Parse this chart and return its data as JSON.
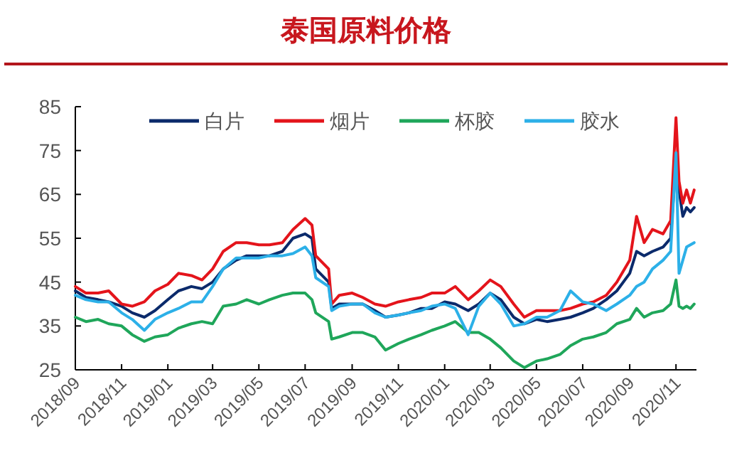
{
  "chart_data": {
    "type": "line",
    "title": "泰国原料价格",
    "x": [
      "2018-09-01",
      "2018-09-15",
      "2018-10-01",
      "2018-10-15",
      "2018-11-01",
      "2018-11-15",
      "2018-12-01",
      "2018-12-15",
      "2019-01-01",
      "2019-01-15",
      "2019-02-01",
      "2019-02-15",
      "2019-03-01",
      "2019-03-15",
      "2019-04-01",
      "2019-04-15",
      "2019-05-01",
      "2019-05-15",
      "2019-06-01",
      "2019-06-15",
      "2019-07-01",
      "2019-07-10",
      "2019-07-15",
      "2019-08-01",
      "2019-08-05",
      "2019-08-15",
      "2019-09-01",
      "2019-09-15",
      "2019-10-01",
      "2019-10-15",
      "2019-11-01",
      "2019-11-15",
      "2019-12-01",
      "2019-12-15",
      "2020-01-01",
      "2020-01-15",
      "2020-02-01",
      "2020-02-15",
      "2020-03-01",
      "2020-03-15",
      "2020-04-01",
      "2020-04-15",
      "2020-05-01",
      "2020-05-15",
      "2020-06-01",
      "2020-06-15",
      "2020-07-01",
      "2020-07-15",
      "2020-08-01",
      "2020-08-15",
      "2020-09-01",
      "2020-09-10",
      "2020-09-20",
      "2020-10-01",
      "2020-10-15",
      "2020-10-25",
      "2020-11-01",
      "2020-11-05",
      "2020-11-10",
      "2020-11-15",
      "2020-11-20",
      "2020-11-25"
    ],
    "series": [
      {
        "name": "白片",
        "color": "#0b2a6b",
        "values": [
          43,
          41.5,
          41,
          40.5,
          39.5,
          38,
          37,
          38.5,
          41,
          43,
          44,
          43.5,
          45,
          48,
          50,
          51,
          51,
          51,
          52,
          55,
          56,
          55,
          48,
          45,
          39,
          40,
          40,
          40,
          38.5,
          37,
          37.5,
          38,
          39,
          39,
          40.5,
          40,
          38.5,
          40,
          42.5,
          41,
          37,
          35.5,
          36.5,
          36,
          36.5,
          37,
          38,
          39,
          41,
          43,
          47,
          52,
          51,
          52,
          53,
          55,
          73,
          66,
          60,
          62,
          61,
          62
        ]
      },
      {
        "name": "烟片",
        "color": "#e4141b",
        "values": [
          44,
          42.5,
          42.5,
          43,
          40,
          39.5,
          40.5,
          43,
          44.5,
          47,
          46.5,
          45.5,
          48,
          52,
          54,
          54,
          53.5,
          53.5,
          54,
          57,
          59.5,
          58,
          51,
          48,
          40,
          42,
          42.5,
          41.5,
          40,
          39.5,
          40.5,
          41,
          41.5,
          42.5,
          42.5,
          44,
          41,
          43,
          45.5,
          44,
          40,
          37,
          38.5,
          38.5,
          38.5,
          39,
          40,
          40.5,
          42,
          45,
          50,
          60,
          54,
          57,
          56,
          59,
          82.5,
          68,
          63,
          66,
          63,
          66
        ]
      },
      {
        "name": "杯胶",
        "color": "#1fa65a",
        "values": [
          37,
          36,
          36.5,
          35.5,
          35,
          33,
          31.5,
          32.5,
          33,
          34.5,
          35.5,
          36,
          35.5,
          39.5,
          40,
          41,
          40,
          41,
          42,
          42.5,
          42.5,
          41,
          38,
          36,
          32,
          32.5,
          33.5,
          33.5,
          32.5,
          29.5,
          31,
          32,
          33,
          34,
          35,
          36,
          33.5,
          33.5,
          32,
          30,
          27,
          25.5,
          27,
          27.5,
          28.5,
          30.5,
          32,
          32.5,
          33.5,
          35.5,
          36.5,
          39,
          37,
          38,
          38.5,
          40,
          45.5,
          39.5,
          39,
          39.5,
          39,
          40
        ]
      },
      {
        "name": "胶水",
        "color": "#2cb0e8",
        "values": [
          42,
          41,
          40.5,
          40.5,
          38,
          36.5,
          34,
          36.5,
          38,
          39,
          40.5,
          40.5,
          44,
          48,
          50.5,
          50.5,
          50.5,
          51,
          51,
          51.5,
          53,
          51,
          46,
          44,
          38.5,
          39.5,
          40,
          40,
          38,
          37,
          37.5,
          38,
          38.5,
          39.5,
          40,
          39,
          33,
          39.5,
          42.5,
          40,
          35,
          35.5,
          37,
          37,
          38.5,
          43,
          40.5,
          40,
          38.5,
          40,
          42,
          44,
          45,
          48,
          50,
          52,
          74.5,
          47,
          50,
          53,
          53.5,
          54
        ]
      }
    ],
    "xlim": [
      "2018-09-01",
      "2020-11-28"
    ],
    "xticks": [
      {
        "value": "2018-09",
        "label": "2018/09"
      },
      {
        "value": "2018-11",
        "label": "2018/11"
      },
      {
        "value": "2019-01",
        "label": "2019/01"
      },
      {
        "value": "2019-03",
        "label": "2019/03"
      },
      {
        "value": "2019-05",
        "label": "2019/05"
      },
      {
        "value": "2019-07",
        "label": "2019/07"
      },
      {
        "value": "2019-09",
        "label": "2019/09"
      },
      {
        "value": "2019-11",
        "label": "2019/11"
      },
      {
        "value": "2020-01",
        "label": "2020/01"
      },
      {
        "value": "2020-03",
        "label": "2020/03"
      },
      {
        "value": "2020-05",
        "label": "2020/05"
      },
      {
        "value": "2020-07",
        "label": "2020/07"
      },
      {
        "value": "2020-09",
        "label": "2020/09"
      },
      {
        "value": "2020-11",
        "label": "2020/11"
      }
    ],
    "ylim": [
      25,
      85
    ],
    "yticks": [
      25,
      35,
      45,
      55,
      65,
      75,
      85
    ],
    "grid": false,
    "legend": "top",
    "marker": "none",
    "line_style": "solid"
  }
}
